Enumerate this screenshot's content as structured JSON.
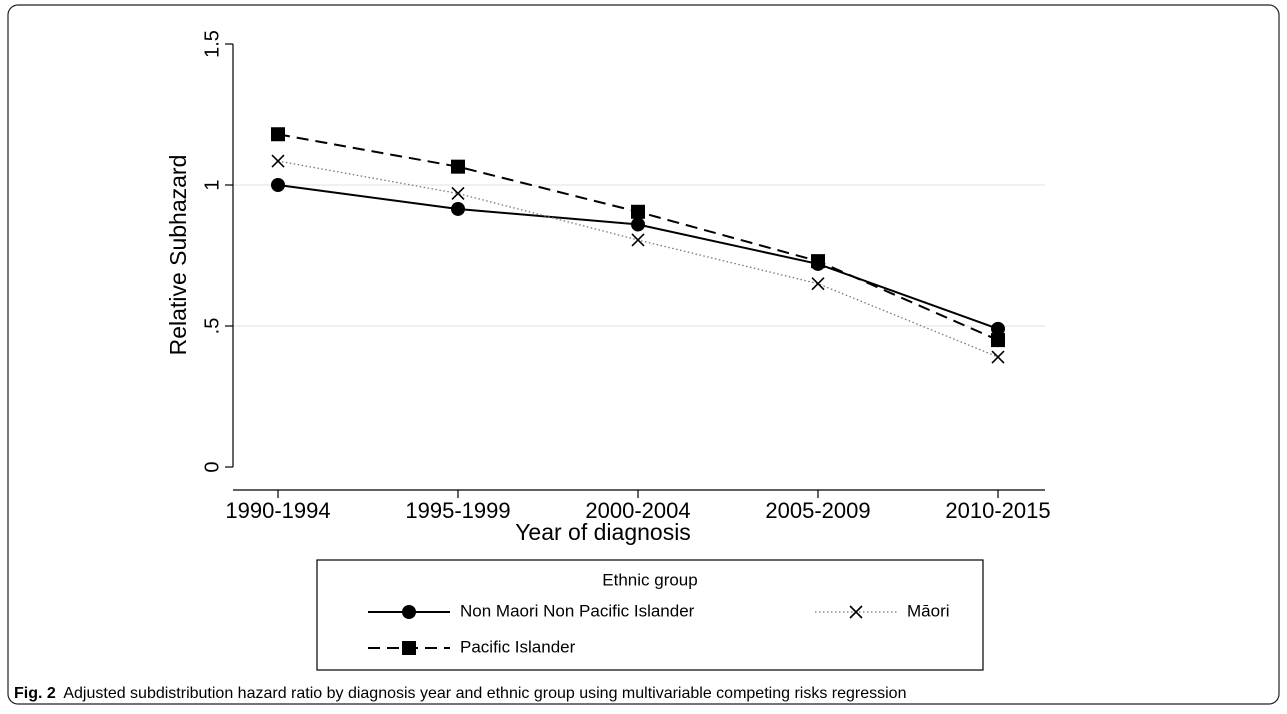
{
  "chart_data": {
    "type": "line",
    "y_label": "Relative Subhazard",
    "x_label": "Year of diagnosis",
    "categories": [
      "1990-1994",
      "1995-1999",
      "2000-2004",
      "2005-2009",
      "2010-2015"
    ],
    "series": [
      {
        "name": "Non Maori Non Pacific Islander",
        "color": "#000000",
        "line_style": "solid",
        "marker": "circle",
        "values": [
          1.0,
          0.915,
          0.86,
          0.72,
          0.49
        ]
      },
      {
        "name": "Māori",
        "color": "#777777",
        "line_style": "dotted",
        "marker": "x",
        "values": [
          1.085,
          0.97,
          0.805,
          0.65,
          0.39
        ]
      },
      {
        "name": "Pacific Islander",
        "color": "#000000",
        "line_style": "dashed",
        "marker": "square",
        "values": [
          1.18,
          1.065,
          0.905,
          0.73,
          0.45
        ]
      }
    ],
    "ylim": [
      0,
      1.5
    ],
    "yticks": [
      0,
      {
        "value": 0.5,
        "label": ".5"
      },
      1,
      1.5
    ],
    "grid": true,
    "legend_title": "Ethnic group",
    "legend_position": "bottom",
    "figure_label": "Fig. 2",
    "caption": "Adjusted subdistribution hazard ratio by diagnosis year and ethnic group using multivariable competing risks regression"
  }
}
